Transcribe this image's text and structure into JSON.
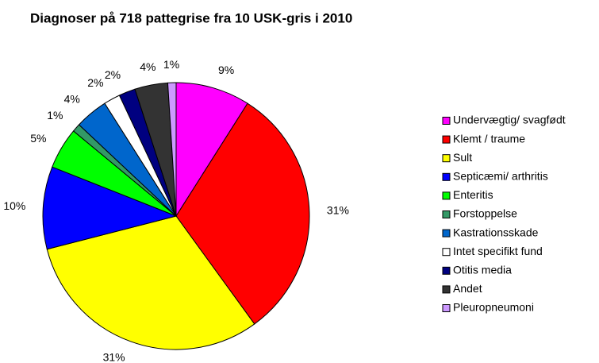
{
  "chart_data": {
    "type": "pie",
    "title": "Diagnoser på 718 pattegrise fra 10 USK-gris i 2010",
    "categories": [
      "Undervægtig/ svagfødt",
      "Klemt / traume",
      "Sult",
      "Septicæmi/ arthritis",
      "Enteritis",
      "Forstoppelse",
      "Kastrationsskade",
      "Intet specifikt fund",
      "Otitis media",
      "Andet",
      "Pleuropneumoni"
    ],
    "values": [
      9,
      31,
      31,
      10,
      5,
      1,
      4,
      2,
      2,
      4,
      1
    ],
    "value_labels": [
      "9%",
      "31%",
      "31%",
      "10%",
      "5%",
      "1%",
      "4%",
      "2%",
      "2%",
      "4%",
      "1%"
    ],
    "colors": [
      "#ff00ff",
      "#ff0000",
      "#ffff00",
      "#0000ff",
      "#00ff00",
      "#339966",
      "#0066cc",
      "#ffffff",
      "#000080",
      "#333333",
      "#cc99ff"
    ],
    "legend": "right"
  }
}
